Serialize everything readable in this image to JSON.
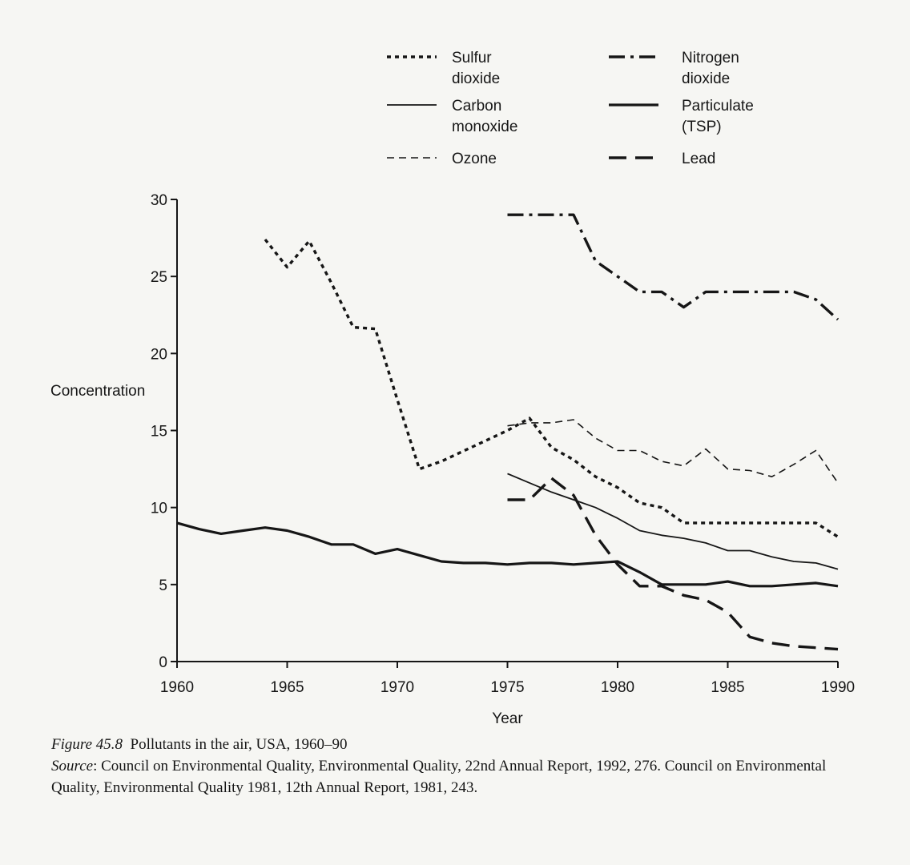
{
  "chart_data": {
    "type": "line",
    "title": "",
    "xlabel": "Year",
    "ylabel": "Concentration",
    "xlim": [
      1960,
      1990
    ],
    "ylim": [
      0,
      30
    ],
    "xticks": [
      1960,
      1965,
      1970,
      1975,
      1980,
      1985,
      1990
    ],
    "yticks": [
      0,
      5,
      10,
      15,
      20,
      25,
      30
    ],
    "grid": false,
    "legend_position": "top",
    "series": [
      {
        "name": "Sulfur dioxide",
        "style": "dotted",
        "x": [
          1964,
          1965,
          1966,
          1967,
          1968,
          1969,
          1970,
          1971,
          1972,
          1975,
          1976,
          1977,
          1978,
          1979,
          1980,
          1981,
          1982,
          1983,
          1984,
          1985,
          1986,
          1987,
          1988,
          1989,
          1990
        ],
        "y": [
          27.4,
          25.6,
          27.3,
          24.6,
          21.7,
          21.6,
          17.0,
          12.5,
          13.0,
          15.0,
          15.8,
          13.9,
          13.1,
          12.0,
          11.3,
          10.3,
          10.0,
          9.0,
          9.0,
          9.0,
          9.0,
          9.0,
          9.0,
          9.0,
          8.1
        ]
      },
      {
        "name": "Carbon monoxide",
        "style": "solid-thin",
        "x": [
          1975,
          1976,
          1977,
          1978,
          1979,
          1980,
          1981,
          1982,
          1983,
          1984,
          1985,
          1986,
          1987,
          1988,
          1989,
          1990
        ],
        "y": [
          12.2,
          11.6,
          11.0,
          10.5,
          10.0,
          9.3,
          8.5,
          8.2,
          8.0,
          7.7,
          7.2,
          7.2,
          6.8,
          6.5,
          6.4,
          6.0
        ]
      },
      {
        "name": "Ozone",
        "style": "short-dashed",
        "x": [
          1975,
          1976,
          1977,
          1978,
          1979,
          1980,
          1981,
          1982,
          1983,
          1984,
          1985,
          1986,
          1987,
          1988,
          1989,
          1990
        ],
        "y": [
          15.3,
          15.5,
          15.5,
          15.7,
          14.5,
          13.7,
          13.7,
          13.0,
          12.7,
          13.8,
          12.5,
          12.4,
          12.0,
          12.8,
          13.7,
          11.6
        ]
      },
      {
        "name": "Nitrogen dioxide",
        "style": "dash-dot",
        "x": [
          1975,
          1976,
          1977,
          1978,
          1979,
          1980,
          1981,
          1982,
          1983,
          1984,
          1985,
          1986,
          1987,
          1988,
          1989,
          1990
        ],
        "y": [
          29.0,
          29.0,
          29.0,
          29.0,
          26.0,
          25.0,
          24.0,
          24.0,
          23.0,
          24.0,
          24.0,
          24.0,
          24.0,
          24.0,
          23.5,
          22.2
        ]
      },
      {
        "name": "Particulate (TSP)",
        "style": "solid-thick",
        "x": [
          1960,
          1961,
          1962,
          1963,
          1964,
          1965,
          1966,
          1967,
          1968,
          1969,
          1970,
          1971,
          1972,
          1973,
          1974,
          1975,
          1976,
          1977,
          1978,
          1979,
          1980,
          1981,
          1982,
          1983,
          1984,
          1985,
          1986,
          1987,
          1988,
          1989,
          1990
        ],
        "y": [
          9.0,
          8.6,
          8.3,
          8.5,
          8.7,
          8.5,
          8.1,
          7.6,
          7.6,
          7.0,
          7.3,
          6.9,
          6.5,
          6.4,
          6.4,
          6.3,
          6.4,
          6.4,
          6.3,
          6.4,
          6.5,
          5.8,
          5.0,
          5.0,
          5.0,
          5.2,
          4.9,
          4.9,
          5.0,
          5.1,
          4.9
        ]
      },
      {
        "name": "Lead",
        "style": "long-dashed",
        "x": [
          1975,
          1976,
          1977,
          1978,
          1979,
          1980,
          1981,
          1982,
          1983,
          1984,
          1985,
          1986,
          1987,
          1988,
          1989,
          1990
        ],
        "y": [
          10.5,
          10.5,
          11.9,
          10.8,
          8.2,
          6.3,
          4.9,
          4.9,
          4.3,
          4.0,
          3.2,
          1.6,
          1.2,
          1.0,
          0.9,
          0.8
        ]
      }
    ],
    "legend": [
      {
        "series_index": 0,
        "lines": [
          "Sulfur",
          "dioxide"
        ]
      },
      {
        "series_index": 1,
        "lines": [
          "Carbon",
          "monoxide"
        ]
      },
      {
        "series_index": 2,
        "lines": [
          "Ozone"
        ]
      },
      {
        "series_index": 3,
        "lines": [
          "Nitrogen",
          "dioxide"
        ]
      },
      {
        "series_index": 4,
        "lines": [
          "Particulate",
          "(TSP)"
        ]
      },
      {
        "series_index": 5,
        "lines": [
          "Lead"
        ]
      }
    ]
  },
  "caption": {
    "figure_label": "Figure 45.8",
    "figure_title": "Pollutants in the air, USA, 1960–90",
    "source_label": "Source",
    "source_text": ": Council on Environmental Quality, Environmental Quality, 22nd Annual Report, 1992, 276. Council on Environmental Quality, Environmental Quality 1981, 12th Annual Report, 1981, 243."
  }
}
